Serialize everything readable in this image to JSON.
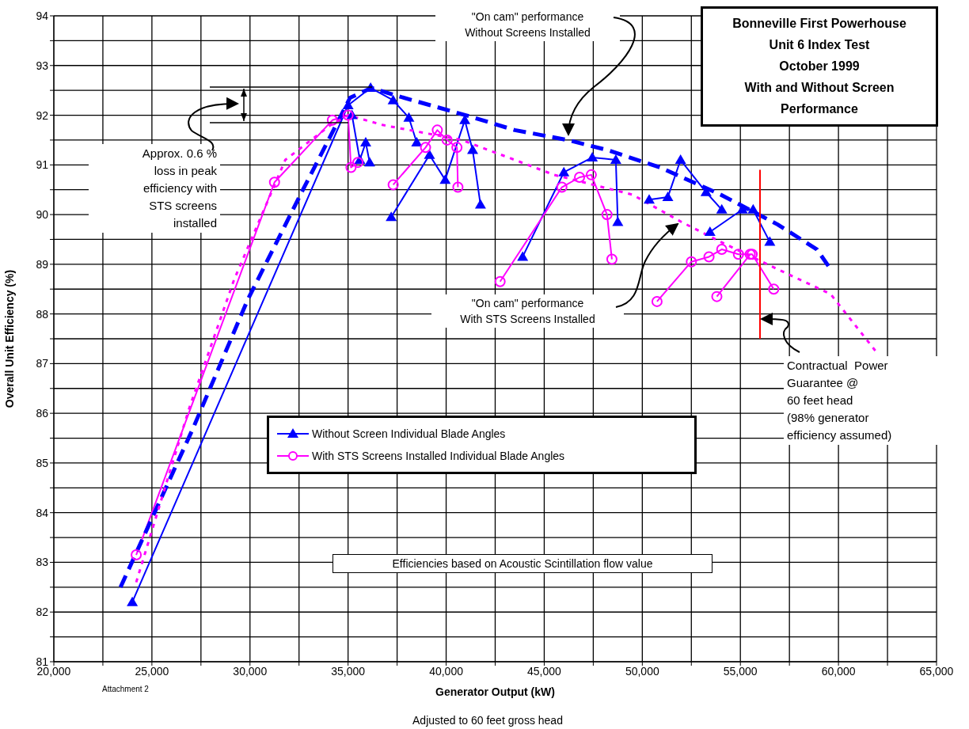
{
  "chart_data": {
    "type": "line",
    "title": "Bonneville First Powerhouse\nUnit 6 Index Test\nOctober 1999\nWith and Without Screen\nPerformance",
    "xlabel": "Generator Output (kW)",
    "ylabel": "Overall Unit Efficiency (%)",
    "xlim": [
      20000,
      65000
    ],
    "ylim": [
      81,
      94
    ],
    "xticks": [
      {
        "value": 20000,
        "label": "20,000"
      },
      {
        "value": 22500,
        "label": null
      },
      {
        "value": 25000,
        "label": "25,000"
      },
      {
        "value": 27500,
        "label": null
      },
      {
        "value": 30000,
        "label": "30,000"
      },
      {
        "value": 32500,
        "label": null
      },
      {
        "value": 35000,
        "label": "35,000"
      },
      {
        "value": 37500,
        "label": null
      },
      {
        "value": 40000,
        "label": "40,000"
      },
      {
        "value": 42500,
        "label": null
      },
      {
        "value": 45000,
        "label": "45,000"
      },
      {
        "value": 47500,
        "label": null
      },
      {
        "value": 50000,
        "label": "50,000"
      },
      {
        "value": 52500,
        "label": null
      },
      {
        "value": 55000,
        "label": "55,000"
      },
      {
        "value": 57500,
        "label": null
      },
      {
        "value": 60000,
        "label": "60,000"
      },
      {
        "value": 62500,
        "label": null
      },
      {
        "value": 65000,
        "label": "65,000"
      }
    ],
    "yticks": [
      81,
      {
        "value": 81.5,
        "label": null
      },
      82,
      {
        "value": 82.5,
        "label": null
      },
      83,
      {
        "value": 83.5,
        "label": null
      },
      84,
      {
        "value": 84.5,
        "label": null
      },
      85,
      {
        "value": 85.5,
        "label": null
      },
      86,
      {
        "value": 86.5,
        "label": null
      },
      87,
      {
        "value": 87.5,
        "label": null
      },
      88,
      {
        "value": 88.5,
        "label": null
      },
      89,
      {
        "value": 89.5,
        "label": null
      },
      90,
      {
        "value": 90.5,
        "label": null
      },
      91,
      {
        "value": 91.5,
        "label": null
      },
      92,
      {
        "value": 92.5,
        "label": null
      },
      93,
      {
        "value": 93.5,
        "label": null
      },
      94
    ],
    "grid": true,
    "legend": "center",
    "series": [
      {
        "name": "Without Screen Individual Blade Angles",
        "color": "#0000ff",
        "marker": "triangle",
        "line_style": "solid",
        "x": [
          24000,
          35000,
          36150,
          37300,
          38100,
          38500,
          null,
          35200,
          35600,
          35900,
          36100,
          null,
          37200,
          39150,
          39950,
          40950,
          41350,
          41750,
          null,
          43900,
          46000,
          47450,
          48650,
          48750,
          null,
          50350,
          51300,
          51950,
          53250,
          54050,
          null,
          53450,
          55100,
          55650,
          56500
        ],
        "values": [
          82.2,
          92.2,
          92.55,
          92.3,
          91.95,
          91.45,
          null,
          92.0,
          91.1,
          91.45,
          91.05,
          null,
          89.95,
          91.2,
          90.7,
          91.9,
          91.3,
          90.2,
          null,
          89.15,
          90.85,
          91.15,
          91.1,
          89.85,
          null,
          90.3,
          90.35,
          91.1,
          90.45,
          90.1,
          null,
          89.65,
          90.1,
          90.1,
          89.45
        ]
      },
      {
        "name": "With STS Screens Installed Individual Blade Angles",
        "color": "#ff00ff",
        "marker": "circle",
        "line_style": "solid",
        "x": [
          24200,
          31250,
          34200,
          35000,
          35150,
          35500,
          null,
          37300,
          38950,
          39550,
          40050,
          40550,
          40600,
          null,
          42750,
          45900,
          46800,
          47400,
          48200,
          48450,
          null,
          50750,
          52500,
          53400,
          54050,
          54900,
          55600,
          56700,
          null,
          53800,
          55500
        ],
        "values": [
          83.15,
          90.65,
          91.9,
          92.0,
          90.95,
          91.05,
          null,
          90.6,
          91.35,
          91.7,
          91.5,
          91.35,
          90.55,
          null,
          88.65,
          90.55,
          90.75,
          90.8,
          90.0,
          89.1,
          null,
          88.25,
          89.05,
          89.15,
          89.3,
          89.2,
          89.2,
          88.5,
          null,
          88.35,
          89.2
        ]
      },
      {
        "color": "#0000ff",
        "marker": "none",
        "line_style": "dashed",
        "x": [
          23400,
          27100,
          29900,
          32700,
          35100,
          36200,
          37400,
          39200,
          41000,
          43500,
          46200,
          48200,
          50900,
          54000,
          56900,
          58900,
          59600
        ],
        "values": [
          82.5,
          85.7,
          88.3,
          90.5,
          92.35,
          92.55,
          92.4,
          92.2,
          92.0,
          91.7,
          91.5,
          91.3,
          90.95,
          90.4,
          89.8,
          89.3,
          88.9
        ]
      },
      {
        "color": "#ff00ff",
        "marker": "none",
        "line_style": "dotted",
        "x": [
          24200,
          26900,
          29200,
          31800,
          34100,
          35000,
          36800,
          38800,
          40800,
          43500,
          45500,
          47500,
          49500,
          52000,
          54000,
          56900,
          59600,
          61900
        ],
        "values": [
          82.6,
          86.1,
          88.7,
          91.1,
          91.8,
          92.0,
          91.8,
          91.65,
          91.5,
          91.1,
          90.8,
          90.6,
          90.4,
          89.85,
          89.45,
          88.9,
          88.4,
          87.25
        ]
      },
      {
        "color": "#ff0000",
        "marker": "none",
        "line_style": "solid",
        "x": [
          56000,
          56000
        ],
        "values": [
          87.5,
          90.9
        ]
      }
    ],
    "annotations": [
      "\"On cam\" performance\nWithout Screens Installed",
      "\"On cam\" performance\nWith STS Screens Installed",
      "Approx. 0.6 %\nloss in peak\nefficiency with\nSTS screens\ninstalled",
      {
        "text": "Contractual  Power\nGuarantee @\n60 feet head\n(98% generator\nefficiency assumed)",
        "x": 56000,
        "y": 87.9
      },
      "Efficiencies based on Acoustic Scintillation flow value",
      "Attachment 2",
      "Adjusted to 60 feet gross head"
    ]
  }
}
